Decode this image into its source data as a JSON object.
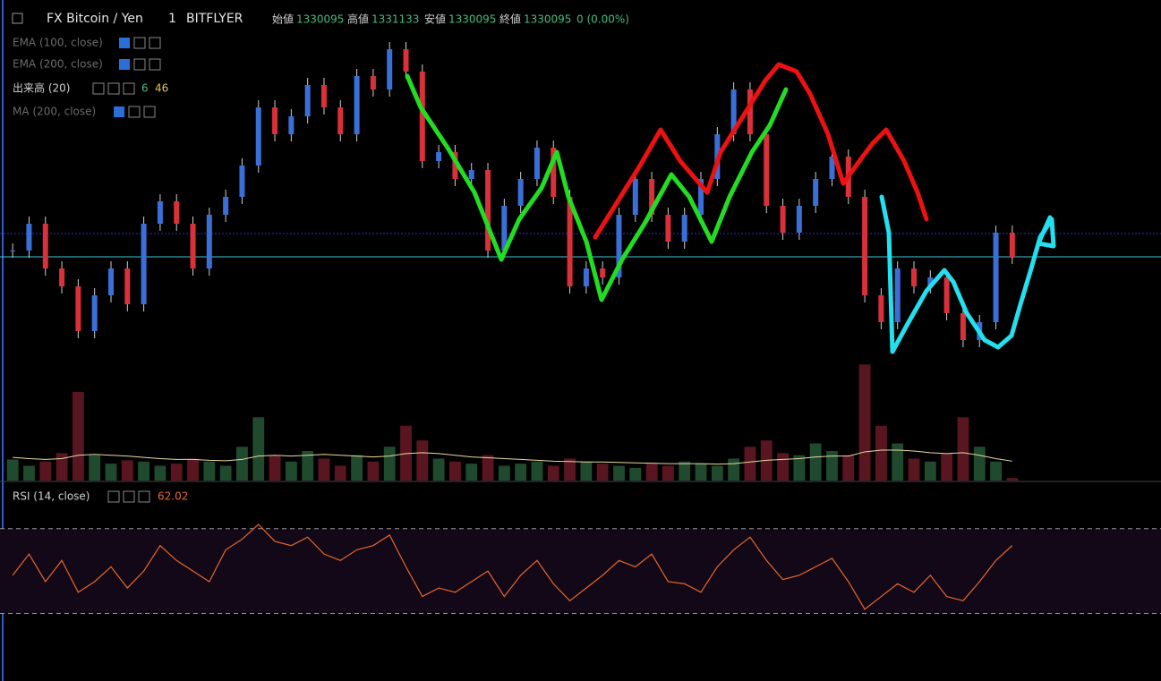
{
  "header": {
    "symbol": "FX Bitcoin / Yen",
    "interval": "1",
    "exchange": "BITFLYER",
    "open_label": "始値",
    "open": "1330095",
    "high_label": "高値",
    "high": "1331133",
    "low_label": "安値",
    "low": "1330095",
    "close_label": "終値",
    "close": "1330095",
    "change": "0 (0.00%)"
  },
  "indicators": [
    {
      "name": "EMA (100, close)"
    },
    {
      "name": "EMA (200, close)"
    },
    {
      "name": "出来高 (20)",
      "value": "6",
      "ma_value": "46"
    },
    {
      "name": "MA (200, close)"
    }
  ],
  "price": {
    "up_color": "#3a6fd8",
    "down_color": "#d9303a",
    "ylim": [
      1327435,
      1335235
    ],
    "closes": [
      1330235,
      1330835,
      1329835,
      1329435,
      1328435,
      1329235,
      1329835,
      1329035,
      1330835,
      1331335,
      1330835,
      1329835,
      1331035,
      1331435,
      1332135,
      1333435,
      1332835,
      1333235,
      1333935,
      1333435,
      1332835,
      1334135,
      1333835,
      1334735,
      1334235,
      1332235,
      1332435,
      1331835,
      1332035,
      1330235,
      1331235,
      1331835,
      1332535,
      1331435,
      1329435,
      1329835,
      1329635,
      1331035,
      1331835,
      1331035,
      1330435,
      1331035,
      1331835,
      1332835,
      1333835,
      1332835,
      1331235,
      1330635,
      1331235,
      1331835,
      1332335,
      1331435,
      1329235,
      1328635,
      1329835,
      1329435,
      1329635,
      1328835,
      1328235,
      1328635,
      1330635,
      1330095
    ]
  },
  "volume": {
    "ylim": [
      0,
      280
    ],
    "ma_color": "#e8d9a0",
    "values": [
      50,
      35,
      45,
      65,
      210,
      60,
      40,
      48,
      45,
      35,
      40,
      52,
      45,
      35,
      80,
      150,
      60,
      45,
      70,
      52,
      35,
      60,
      45,
      80,
      130,
      95,
      52,
      45,
      40,
      60,
      35,
      40,
      45,
      35,
      52,
      45,
      40,
      35,
      30,
      40,
      35,
      45,
      40,
      35,
      52,
      80,
      95,
      65,
      60,
      88,
      70,
      60,
      275,
      130,
      88,
      52,
      45,
      65,
      150,
      80,
      45,
      6
    ],
    "ma": [
      55,
      52,
      50,
      52,
      60,
      62,
      60,
      58,
      55,
      52,
      50,
      50,
      48,
      47,
      50,
      58,
      60,
      58,
      60,
      62,
      60,
      58,
      56,
      58,
      64,
      66,
      64,
      60,
      56,
      54,
      52,
      50,
      48,
      46,
      45,
      44,
      44,
      43,
      42,
      41,
      40,
      40,
      40,
      39,
      40,
      44,
      48,
      50,
      52,
      56,
      58,
      58,
      68,
      72,
      72,
      70,
      66,
      64,
      66,
      60,
      52,
      46
    ]
  },
  "rsi": {
    "name": "RSI (14, close)",
    "last": "62.02",
    "color": "#e8672a",
    "ylim": [
      18,
      80
    ],
    "bands": [
      70,
      30
    ],
    "values": [
      48,
      58,
      45,
      55,
      40,
      45,
      52,
      42,
      50,
      62,
      55,
      50,
      45,
      60,
      65,
      72,
      64,
      62,
      66,
      58,
      55,
      60,
      62,
      67,
      52,
      38,
      42,
      40,
      45,
      50,
      38,
      48,
      55,
      44,
      36,
      42,
      48,
      55,
      52,
      58,
      45,
      44,
      40,
      52,
      60,
      66,
      55,
      46,
      48,
      52,
      56,
      45,
      32,
      38,
      44,
      40,
      48,
      38,
      36,
      45,
      55,
      62.02
    ]
  }
}
